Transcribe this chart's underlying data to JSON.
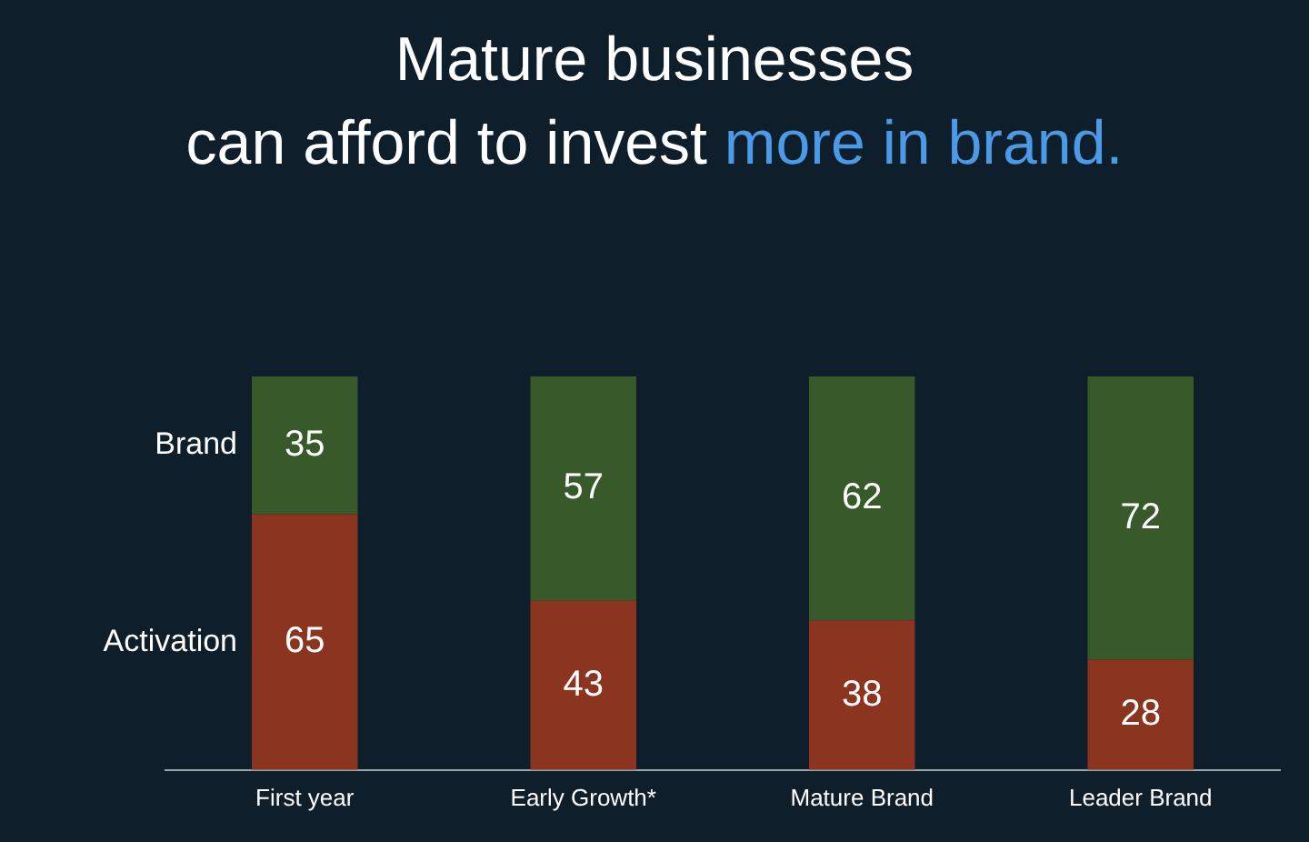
{
  "chart_data": {
    "type": "bar",
    "title": "Mature businesses",
    "subtitle": "can afford to invest more in brand.",
    "categories": [
      "First year",
      "Early Growth*",
      "Mature Brand",
      "Leader Brand"
    ],
    "stacked": true,
    "data_labels": true,
    "legend": "left",
    "ylim": [
      0,
      100
    ],
    "series": [
      {
        "name": "Activation",
        "color": "#8b3520",
        "values": [
          65,
          43,
          38,
          28
        ]
      },
      {
        "name": "Brand",
        "color": "#385a2a",
        "values": [
          35,
          57,
          62,
          72
        ]
      }
    ]
  }
}
